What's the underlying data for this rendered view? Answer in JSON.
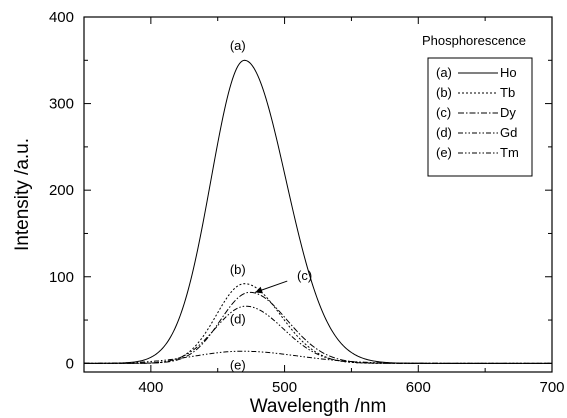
{
  "chart_data": {
    "type": "line",
    "title": "",
    "xlabel": "Wavelength /nm",
    "ylabel": "Intensity /a.u.",
    "xlim": [
      350,
      700
    ],
    "ylim": [
      -10,
      400
    ],
    "xticks": [
      400,
      500,
      600,
      700
    ],
    "yticks": [
      0,
      100,
      200,
      300,
      400
    ],
    "grid": false,
    "legend": {
      "title": "Phosphorescence",
      "placement": "top-right",
      "entries": [
        {
          "tag": "(a)",
          "name": "Ho",
          "dash": "solid"
        },
        {
          "tag": "(b)",
          "name": "Tb",
          "dash": "dotted"
        },
        {
          "tag": "(c)",
          "name": "Dy",
          "dash": "dashdot"
        },
        {
          "tag": "(d)",
          "name": "Gd",
          "dash": "dashdotdot"
        },
        {
          "tag": "(e)",
          "name": "Tm",
          "dash": "dashdotdot"
        }
      ]
    },
    "series": [
      {
        "name": "Ho",
        "label": "(a)",
        "peak_x": 470,
        "peak_y": 350,
        "sigma_left": 25,
        "sigma_right": 31
      },
      {
        "name": "Tb",
        "label": "(b)",
        "peak_x": 470,
        "peak_y": 92,
        "sigma_left": 21,
        "sigma_right": 27
      },
      {
        "name": "Dy",
        "label": "(c)",
        "peak_x": 474,
        "peak_y": 82,
        "sigma_left": 22,
        "sigma_right": 28
      },
      {
        "name": "Gd",
        "label": "(d)",
        "peak_x": 471,
        "peak_y": 66,
        "sigma_left": 23,
        "sigma_right": 28
      },
      {
        "name": "Tm",
        "label": "(e)",
        "peak_x": 468,
        "peak_y": 14,
        "sigma_left": 35,
        "sigma_right": 42
      }
    ],
    "baseline": 0,
    "annotations": [
      {
        "text": "(a)",
        "x": 465,
        "y": 362
      },
      {
        "text": "(b)",
        "x": 465,
        "y": 103
      },
      {
        "text": "(c)",
        "x": 515,
        "y": 96
      },
      {
        "text": "(d)",
        "x": 465,
        "y": 46
      },
      {
        "text": "(e)",
        "x": 465,
        "y": -7
      }
    ],
    "arrow": {
      "from": [
        502,
        95
      ],
      "to": [
        478,
        82
      ]
    }
  }
}
